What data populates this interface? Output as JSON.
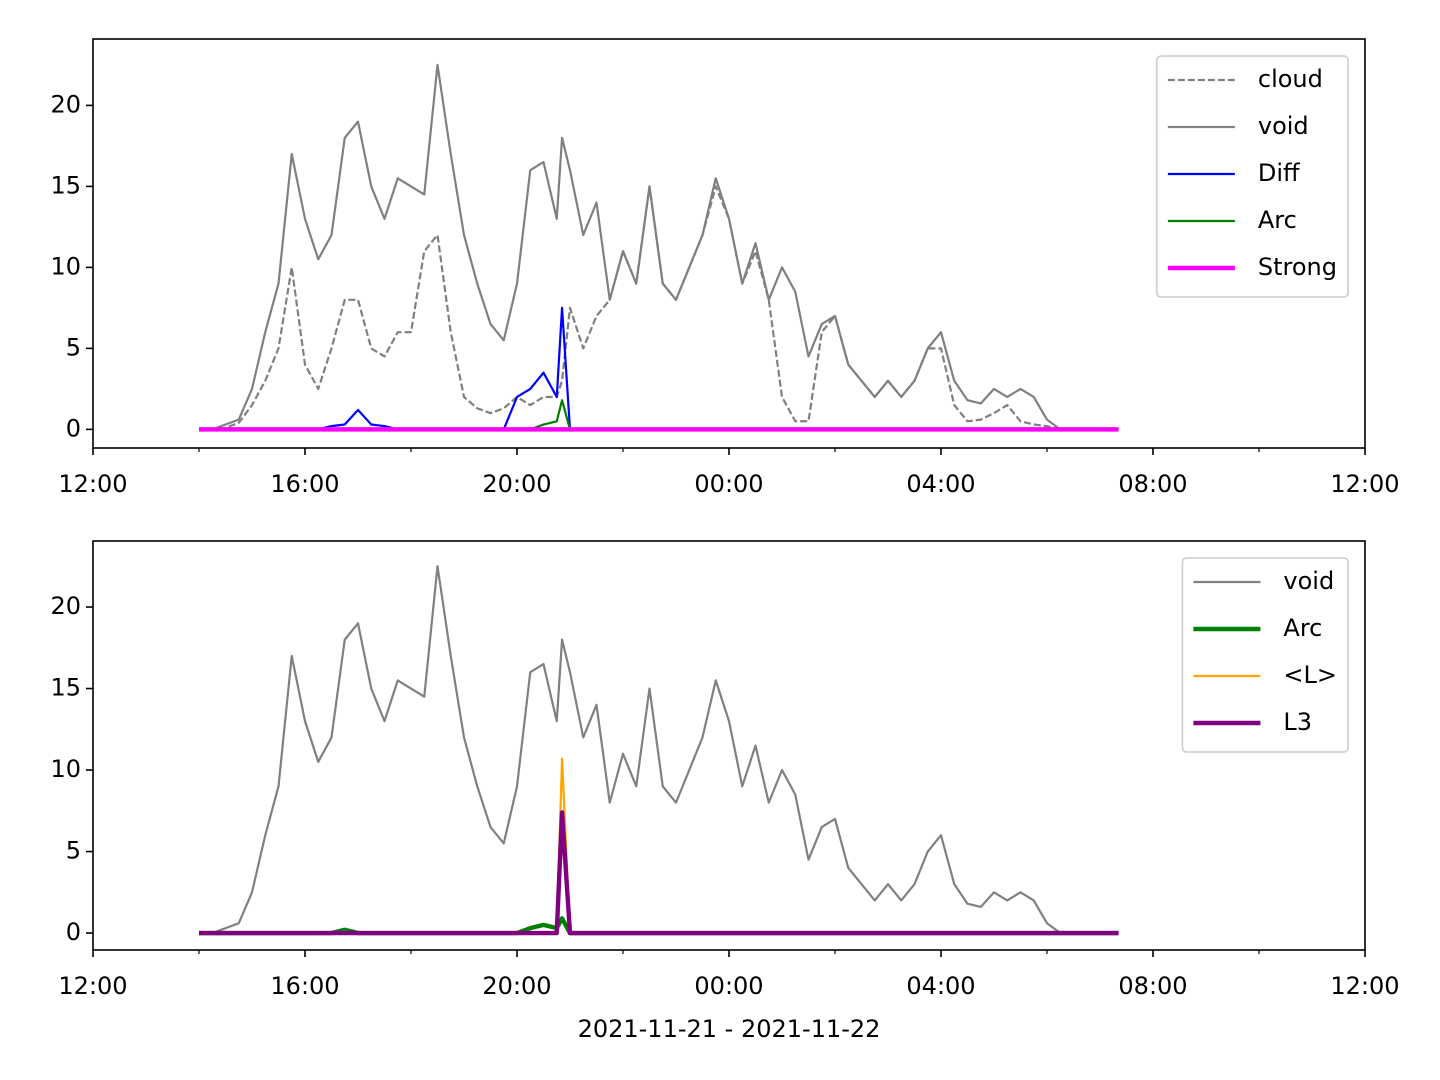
{
  "chart_data": [
    {
      "type": "line",
      "x": [
        14,
        14.25,
        14.5,
        14.75,
        15,
        15.25,
        15.5,
        15.75,
        16,
        16.25,
        16.5,
        16.75,
        17,
        17.25,
        17.5,
        17.75,
        18,
        18.25,
        18.5,
        18.75,
        19,
        19.25,
        19.5,
        19.75,
        20,
        20.25,
        20.5,
        20.75,
        20.85,
        21,
        21.25,
        21.5,
        21.75,
        22,
        22.25,
        22.5,
        22.75,
        23,
        23.25,
        23.5,
        23.75,
        24,
        24.25,
        24.5,
        24.75,
        25,
        25.25,
        25.5,
        25.75,
        26,
        26.25,
        26.5,
        26.75,
        27,
        27.25,
        27.5,
        27.75,
        28,
        28.25,
        28.5,
        28.75,
        29,
        29.25,
        29.5,
        29.75,
        30,
        30.25,
        30.5,
        30.75,
        31,
        31.25,
        31.35
      ],
      "series": [
        {
          "name": "cloud",
          "color": "#808080",
          "linestyle": "--",
          "linewidth": 1,
          "values": [
            0,
            0,
            0.1,
            0.4,
            1.5,
            3,
            5,
            10,
            4,
            2.5,
            5,
            8,
            8,
            5,
            4.5,
            6,
            6,
            11,
            12,
            6,
            2,
            1.3,
            1,
            1.3,
            2,
            1.5,
            2,
            2,
            3,
            7.5,
            5,
            7,
            8,
            11,
            9,
            15,
            9,
            8,
            10,
            12,
            15,
            13,
            9,
            11,
            8,
            2,
            0.5,
            0.5,
            6,
            7,
            4,
            3,
            2,
            3,
            2,
            3,
            5,
            5,
            1.5,
            0.5,
            0.6,
            1,
            1.5,
            0.5,
            0.3,
            0.2,
            0,
            0,
            0,
            0,
            0,
            0
          ]
        },
        {
          "name": "void",
          "color": "#808080",
          "linestyle": "-",
          "linewidth": 1,
          "values": [
            0,
            0,
            0.3,
            0.6,
            2.5,
            6,
            9,
            17,
            13,
            10.5,
            12,
            18,
            19,
            15,
            13,
            15.5,
            15,
            14.5,
            22.5,
            17,
            12,
            9,
            6.5,
            5.5,
            9,
            16,
            16.5,
            13,
            18,
            16,
            12,
            14,
            8,
            11,
            9,
            15,
            9,
            8,
            10,
            12,
            15.5,
            13,
            9,
            11.5,
            8,
            10,
            8.5,
            4.5,
            6.5,
            7,
            4,
            3,
            2,
            3,
            2,
            3,
            5,
            6,
            3,
            1.8,
            1.6,
            2.5,
            2,
            2.5,
            2,
            0.6,
            0,
            0,
            0,
            0,
            0,
            0
          ]
        },
        {
          "name": "Diff",
          "color": "#0000ff",
          "linestyle": "-",
          "linewidth": 1,
          "values": [
            0,
            0,
            0,
            0,
            0,
            0,
            0,
            0,
            0,
            0,
            0.2,
            0.3,
            1.2,
            0.3,
            0.2,
            0,
            0,
            0,
            0,
            0,
            0,
            0,
            0,
            0,
            2,
            2.5,
            3.5,
            2,
            7.5,
            0,
            0,
            0,
            0,
            0,
            0,
            0,
            0,
            0,
            0,
            0,
            0,
            0,
            0,
            0,
            0,
            0,
            0,
            0,
            0,
            0,
            0,
            0,
            0,
            0,
            0,
            0,
            0,
            0,
            0,
            0,
            0,
            0,
            0,
            0,
            0,
            0,
            0,
            0,
            0,
            0,
            0,
            0
          ]
        },
        {
          "name": "Arc",
          "color": "#008000",
          "linestyle": "-",
          "linewidth": 1,
          "values": [
            0,
            0,
            0,
            0,
            0,
            0,
            0,
            0,
            0,
            0,
            0,
            0,
            0,
            0,
            0,
            0,
            0,
            0,
            0,
            0,
            0,
            0,
            0,
            0,
            0,
            0,
            0.3,
            0.5,
            1.8,
            0,
            0,
            0,
            0,
            0,
            0,
            0,
            0,
            0,
            0,
            0,
            0,
            0,
            0,
            0,
            0,
            0,
            0,
            0,
            0,
            0,
            0,
            0,
            0,
            0,
            0,
            0,
            0,
            0,
            0,
            0,
            0,
            0,
            0,
            0,
            0,
            0,
            0,
            0,
            0,
            0,
            0,
            0
          ]
        },
        {
          "name": "Strong",
          "color": "#ff00ff",
          "linestyle": "-",
          "linewidth": 2,
          "values": [
            0,
            0,
            0,
            0,
            0,
            0,
            0,
            0,
            0,
            0,
            0,
            0,
            0,
            0,
            0,
            0,
            0,
            0,
            0,
            0,
            0,
            0,
            0,
            0,
            0,
            0,
            0,
            0,
            0,
            0,
            0,
            0,
            0,
            0,
            0,
            0,
            0,
            0,
            0,
            0,
            0,
            0,
            0,
            0,
            0,
            0,
            0,
            0,
            0,
            0,
            0,
            0,
            0,
            0,
            0,
            0,
            0,
            0,
            0,
            0,
            0,
            0,
            0,
            0,
            0,
            0,
            0,
            0,
            0,
            0,
            0,
            0
          ]
        }
      ],
      "xlim": [
        12,
        36
      ],
      "xticks": [
        {
          "value": 12,
          "label": "12:00"
        },
        {
          "value": 16,
          "label": "16:00"
        },
        {
          "value": 20,
          "label": "20:00"
        },
        {
          "value": 24,
          "label": "00:00"
        },
        {
          "value": 28,
          "label": "04:00"
        },
        {
          "value": 32,
          "label": "08:00"
        },
        {
          "value": 36,
          "label": "12:00"
        }
      ],
      "xminorticks": [
        14,
        18,
        22,
        26,
        30,
        34
      ],
      "ylim": [
        -1.15,
        24.1
      ],
      "yticks": [
        0,
        5,
        10,
        15,
        20
      ],
      "legend": "upper right"
    },
    {
      "type": "line",
      "x": [
        14,
        14.25,
        14.5,
        14.75,
        15,
        15.25,
        15.5,
        15.75,
        16,
        16.25,
        16.5,
        16.75,
        17,
        17.25,
        17.5,
        17.75,
        18,
        18.25,
        18.5,
        18.75,
        19,
        19.25,
        19.5,
        19.75,
        20,
        20.25,
        20.5,
        20.75,
        20.85,
        21,
        21.25,
        21.5,
        21.75,
        22,
        22.25,
        22.5,
        22.75,
        23,
        23.25,
        23.5,
        23.75,
        24,
        24.25,
        24.5,
        24.75,
        25,
        25.25,
        25.5,
        25.75,
        26,
        26.25,
        26.5,
        26.75,
        27,
        27.25,
        27.5,
        27.75,
        28,
        28.25,
        28.5,
        28.75,
        29,
        29.25,
        29.5,
        29.75,
        30,
        30.25,
        30.5,
        30.75,
        31,
        31.25,
        31.35
      ],
      "series": [
        {
          "name": "void",
          "color": "#808080",
          "linestyle": "-",
          "linewidth": 1,
          "values": [
            0,
            0,
            0.3,
            0.6,
            2.5,
            6,
            9,
            17,
            13,
            10.5,
            12,
            18,
            19,
            15,
            13,
            15.5,
            15,
            14.5,
            22.5,
            17,
            12,
            9,
            6.5,
            5.5,
            9,
            16,
            16.5,
            13,
            18,
            16,
            12,
            14,
            8,
            11,
            9,
            15,
            9,
            8,
            10,
            12,
            15.5,
            13,
            9,
            11.5,
            8,
            10,
            8.5,
            4.5,
            6.5,
            7,
            4,
            3,
            2,
            3,
            2,
            3,
            5,
            6,
            3,
            1.8,
            1.6,
            2.5,
            2,
            2.5,
            2,
            0.6,
            0,
            0,
            0,
            0,
            0,
            0
          ]
        },
        {
          "name": "Arc",
          "color": "#008000",
          "linestyle": "-",
          "linewidth": 2,
          "values": [
            0,
            0,
            0,
            0,
            0,
            0,
            0,
            0,
            0,
            0,
            0,
            0.2,
            0,
            0,
            0,
            0,
            0,
            0,
            0,
            0,
            0,
            0,
            0,
            0,
            0,
            0.3,
            0.5,
            0.3,
            0.9,
            0,
            0,
            0,
            0,
            0,
            0,
            0,
            0,
            0,
            0,
            0,
            0,
            0,
            0,
            0,
            0,
            0,
            0,
            0,
            0,
            0,
            0,
            0,
            0,
            0,
            0,
            0,
            0,
            0,
            0,
            0,
            0,
            0,
            0,
            0,
            0,
            0,
            0,
            0,
            0,
            0,
            0,
            0
          ]
        },
        {
          "name": "<L>",
          "color": "#ffa500",
          "linestyle": "-",
          "linewidth": 1,
          "values": [
            0,
            0,
            0,
            0,
            0,
            0,
            0,
            0,
            0,
            0,
            0,
            0,
            0,
            0,
            0,
            0,
            0,
            0,
            0,
            0,
            0,
            0,
            0,
            0,
            0,
            0,
            0,
            0,
            10.7,
            0,
            0,
            0,
            0,
            0,
            0,
            0,
            0,
            0,
            0,
            0,
            0,
            0,
            0,
            0,
            0,
            0,
            0,
            0,
            0,
            0,
            0,
            0,
            0,
            0,
            0,
            0,
            0,
            0,
            0,
            0,
            0,
            0,
            0,
            0,
            0,
            0,
            0,
            0,
            0,
            0,
            0,
            0
          ]
        },
        {
          "name": "L3",
          "color": "#800080",
          "linestyle": "-",
          "linewidth": 2,
          "values": [
            0,
            0,
            0,
            0,
            0,
            0,
            0,
            0,
            0,
            0,
            0,
            0,
            0,
            0,
            0,
            0,
            0,
            0,
            0,
            0,
            0,
            0,
            0,
            0,
            0,
            0,
            0,
            0,
            7.4,
            0,
            0,
            0,
            0,
            0,
            0,
            0,
            0,
            0,
            0,
            0,
            0,
            0,
            0,
            0,
            0,
            0,
            0,
            0,
            0,
            0,
            0,
            0,
            0,
            0,
            0,
            0,
            0,
            0,
            0,
            0,
            0,
            0,
            0,
            0,
            0,
            0,
            0,
            0,
            0,
            0,
            0,
            0
          ]
        }
      ],
      "x_label": "2021-11-21 - 2021-11-22",
      "xlim": [
        12,
        36
      ],
      "xticks": [
        {
          "value": 12,
          "label": "12:00"
        },
        {
          "value": 16,
          "label": "16:00"
        },
        {
          "value": 20,
          "label": "20:00"
        },
        {
          "value": 24,
          "label": "00:00"
        },
        {
          "value": 28,
          "label": "04:00"
        },
        {
          "value": 32,
          "label": "08:00"
        },
        {
          "value": 36,
          "label": "12:00"
        }
      ],
      "xminorticks": [
        14,
        18,
        22,
        26,
        30,
        34
      ],
      "ylim": [
        -1.04,
        24.05
      ],
      "yticks": [
        0,
        5,
        10,
        15,
        20
      ],
      "legend": "upper right"
    }
  ]
}
